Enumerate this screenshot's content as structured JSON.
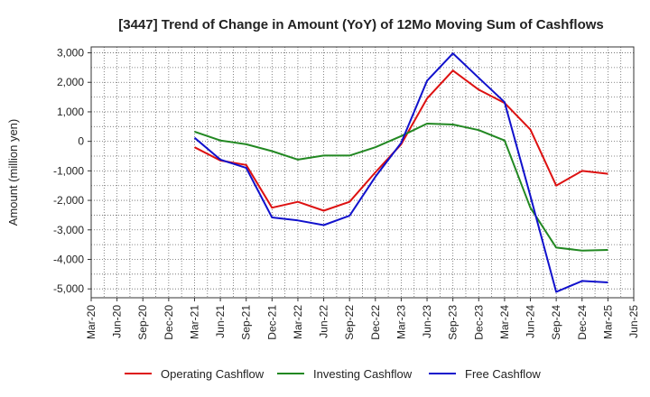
{
  "chart_data": {
    "type": "line",
    "title": "[3447]  Trend of Change in Amount (YoY) of 12Mo Moving Sum of Cashflows",
    "xlabel": "",
    "ylabel": "Amount (million yen)",
    "ylim": [
      -5300,
      3200
    ],
    "yticks": [
      3000,
      2000,
      1000,
      0,
      -1000,
      -2000,
      -3000,
      -4000,
      -5000
    ],
    "ytick_labels": [
      "3,000",
      "2,000",
      "1,000",
      "0",
      "-1,000",
      "-2,000",
      "-3,000",
      "-4,000",
      "-5,000"
    ],
    "categories": [
      "Mar-20",
      "Jun-20",
      "Sep-20",
      "Dec-20",
      "Mar-21",
      "Jun-21",
      "Sep-21",
      "Dec-21",
      "Mar-22",
      "Jun-22",
      "Sep-22",
      "Dec-22",
      "Mar-23",
      "Jun-23",
      "Sep-23",
      "Dec-23",
      "Mar-24",
      "Jun-24",
      "Sep-24",
      "Dec-24",
      "Mar-25",
      "Jun-25"
    ],
    "grid": true,
    "legend_position": "bottom",
    "series": [
      {
        "name": "Operating Cashflow",
        "color": "#dd1111",
        "values": [
          null,
          null,
          null,
          null,
          -200,
          -650,
          -800,
          -2250,
          -2050,
          -2350,
          -2050,
          -1050,
          -100,
          1450,
          2400,
          1750,
          1300,
          400,
          -1500,
          -1000,
          -1100,
          null
        ]
      },
      {
        "name": "Investing Cashflow",
        "color": "#228822",
        "values": [
          null,
          null,
          null,
          null,
          330,
          30,
          -100,
          -330,
          -620,
          -480,
          -480,
          -200,
          180,
          600,
          570,
          380,
          30,
          -2250,
          -3600,
          -3700,
          -3680,
          null
        ]
      },
      {
        "name": "Free Cashflow",
        "color": "#1111cc",
        "values": [
          null,
          null,
          null,
          null,
          120,
          -620,
          -900,
          -2580,
          -2680,
          -2840,
          -2520,
          -1200,
          -50,
          2050,
          2980,
          2150,
          1330,
          -1850,
          -5100,
          -4730,
          -4780,
          null
        ]
      }
    ]
  }
}
